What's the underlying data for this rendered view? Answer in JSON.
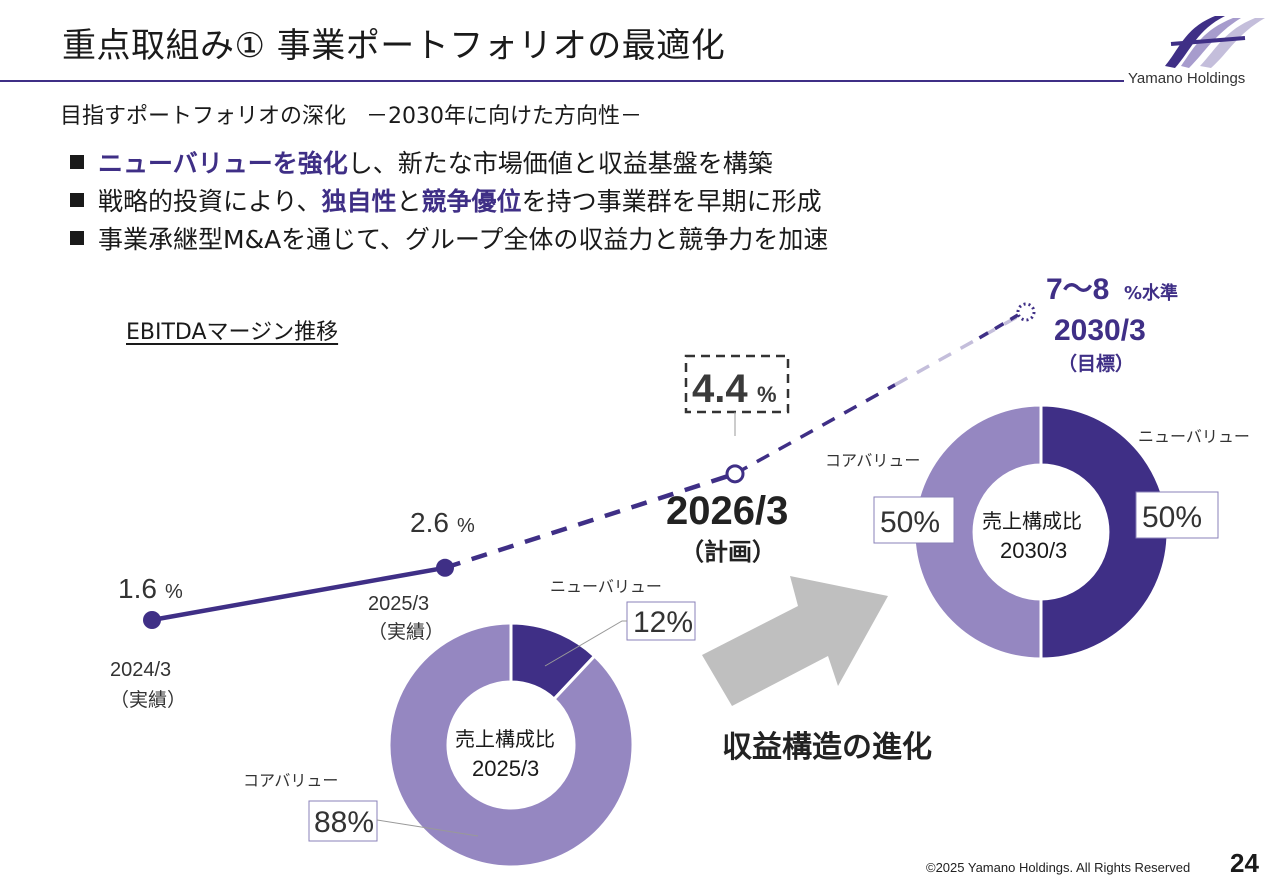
{
  "header": {
    "title": "重点取組み①  事業ポートフォリオの最適化",
    "logo_text": "Yamano Holdings"
  },
  "subtitle": {
    "main": "目指すポートフォリオの深化",
    "sub": "－2030年に向けた方向性－"
  },
  "bullets": [
    {
      "parts": [
        {
          "text": "ニューバリューを強化",
          "highlight": true
        },
        {
          "text": "し、新たな市場価値と収益基盤を構築",
          "highlight": false
        }
      ]
    },
    {
      "parts": [
        {
          "text": "戦略的投資により、",
          "highlight": false
        },
        {
          "text": "独自性",
          "highlight": true
        },
        {
          "text": "と",
          "highlight": false
        },
        {
          "text": "競争優位",
          "highlight": true
        },
        {
          "text": "を持つ事業群を早期に形成",
          "highlight": false
        }
      ]
    },
    {
      "parts": [
        {
          "text": "事業承継型M&Aを通じて、グループ全体の収益力と競争力を加速",
          "highlight": false
        }
      ]
    }
  ],
  "colors": {
    "accent": "#3f2f86",
    "new_value": "#3f2f86",
    "core_value": "#9587c1",
    "future_dash": "#c4bedb",
    "arrow": "#bfbfbf"
  },
  "evolution_label": "収益構造の進化",
  "footer": {
    "copyright": "©2025 Yamano Holdings. All Rights Reserved",
    "page_number": "24"
  },
  "chart_data": [
    {
      "type": "line",
      "title": "EBITDAマージン推移",
      "unit": "%",
      "points": [
        {
          "period": "2024/3",
          "status": "（実績）",
          "value": 1.6,
          "value_label": "1.6",
          "kind": "actual"
        },
        {
          "period": "2025/3",
          "status": "（実績）",
          "value": 2.6,
          "value_label": "2.6",
          "kind": "actual"
        },
        {
          "period": "2026/3",
          "status": "（計画）",
          "value": 4.4,
          "value_label": "4.4",
          "kind": "plan"
        },
        {
          "period": "2030/3",
          "status": "（目標）",
          "value": 7.5,
          "value_label": "7～8",
          "value_suffix": "%水準",
          "kind": "target"
        }
      ]
    },
    {
      "type": "pie",
      "title": "売上構成比",
      "period": "2025/3",
      "slices": [
        {
          "name": "ニューバリュー",
          "value": 12,
          "label": "12%"
        },
        {
          "name": "コアバリュー",
          "value": 88,
          "label": "88%"
        }
      ]
    },
    {
      "type": "pie",
      "title": "売上構成比",
      "period": "2030/3",
      "slices": [
        {
          "name": "ニューバリュー",
          "value": 50,
          "label": "50%"
        },
        {
          "name": "コアバリュー",
          "value": 50,
          "label": "50%"
        }
      ]
    }
  ]
}
